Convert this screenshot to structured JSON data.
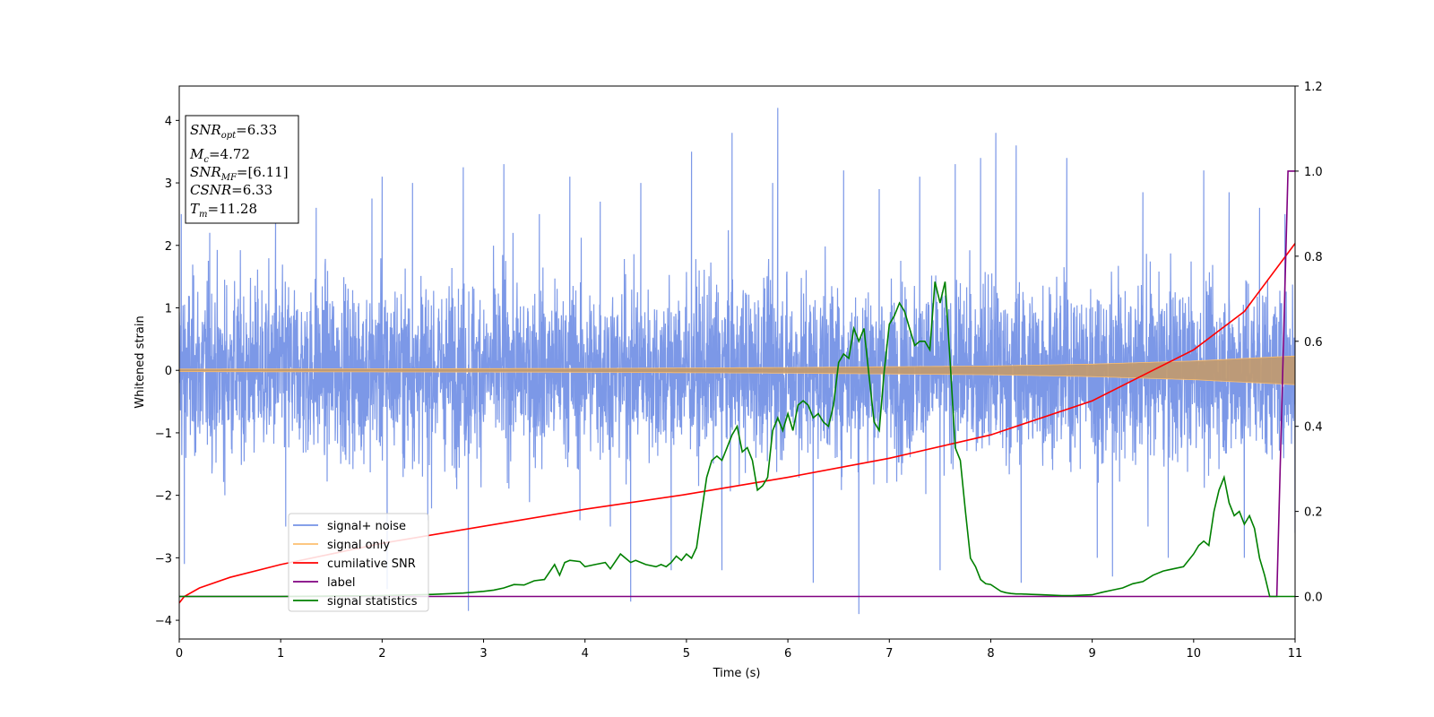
{
  "chart_data": {
    "type": "line",
    "xlabel": "Time (s)",
    "ylabel": "Whitened strain",
    "xlim": [
      0,
      11
    ],
    "ylim": [
      -4.3,
      4.55
    ],
    "ylim_right": [
      -0.1,
      1.2
    ],
    "x_ticks": [
      "0",
      "1",
      "2",
      "3",
      "4",
      "5",
      "6",
      "7",
      "8",
      "9",
      "10",
      "11"
    ],
    "y_ticks": [
      "4",
      "3",
      "2",
      "1",
      "0",
      "−1",
      "−2",
      "−3",
      "−4"
    ],
    "y_ticks_right": [
      "1.2",
      "1.0",
      "0.8",
      "0.6",
      "0.4",
      "0.2",
      "0.0"
    ],
    "grid": false,
    "legend_position": "lower-left",
    "info_box": {
      "snr_opt": {
        "main": "SNR",
        "sub": "opt",
        "value": "=6.33"
      },
      "mc": {
        "main": "M",
        "sub": "c",
        "value": "=4.72"
      },
      "snr_mf": {
        "main": "SNR",
        "sub": "MF",
        "value": "=[6.11]"
      },
      "csnr": {
        "main": "CSNR",
        "sub": "",
        "value": "=6.33"
      },
      "tm": {
        "main": "T",
        "sub": "m",
        "value": "=11.28"
      }
    },
    "series": [
      {
        "name": "signal+ noise",
        "color": "#7592e6",
        "axis": "left",
        "kind": "noise",
        "base_amplitude": 1.55,
        "peaks": [
          [
            0.02,
            2.5
          ],
          [
            0.05,
            -3.1
          ],
          [
            0.3,
            2.2
          ],
          [
            0.45,
            -2.0
          ],
          [
            0.95,
            2.5
          ],
          [
            1.05,
            -2.5
          ],
          [
            1.35,
            2.6
          ],
          [
            1.9,
            2.75
          ],
          [
            2.0,
            3.1
          ],
          [
            2.05,
            -3.5
          ],
          [
            2.3,
            3.0
          ],
          [
            2.45,
            -2.4
          ],
          [
            2.8,
            3.25
          ],
          [
            2.85,
            -3.85
          ],
          [
            3.2,
            3.3
          ],
          [
            3.55,
            2.5
          ],
          [
            3.85,
            3.1
          ],
          [
            3.95,
            -2.4
          ],
          [
            4.15,
            2.7
          ],
          [
            4.25,
            -2.5
          ],
          [
            4.45,
            -3.7
          ],
          [
            4.55,
            3.0
          ],
          [
            4.85,
            -3.2
          ],
          [
            5.05,
            3.5
          ],
          [
            5.35,
            -3.2
          ],
          [
            5.45,
            3.8
          ],
          [
            5.85,
            3.0
          ],
          [
            5.9,
            4.2
          ],
          [
            6.25,
            -3.4
          ],
          [
            6.55,
            3.2
          ],
          [
            6.7,
            -3.9
          ],
          [
            6.9,
            2.9
          ],
          [
            7.3,
            3.1
          ],
          [
            7.5,
            -3.2
          ],
          [
            7.65,
            3.3
          ],
          [
            7.9,
            3.4
          ],
          [
            8.05,
            3.8
          ],
          [
            8.25,
            3.6
          ],
          [
            8.3,
            -3.4
          ],
          [
            8.75,
            3.4
          ],
          [
            9.05,
            -3.0
          ],
          [
            9.2,
            -3.3
          ],
          [
            9.5,
            2.85
          ],
          [
            9.55,
            -2.5
          ],
          [
            9.75,
            -3.0
          ],
          [
            10.1,
            3.2
          ],
          [
            10.35,
            2.85
          ],
          [
            10.5,
            -3.0
          ],
          [
            10.65,
            2.6
          ],
          [
            10.9,
            2.5
          ],
          [
            11.0,
            -2.6
          ]
        ]
      },
      {
        "name": "signal only",
        "color": "#fdbf6f",
        "axis": "left",
        "kind": "envelope",
        "envelope": [
          [
            0,
            0.02
          ],
          [
            4,
            0.03
          ],
          [
            6,
            0.045
          ],
          [
            8,
            0.07
          ],
          [
            9,
            0.1
          ],
          [
            10,
            0.15
          ],
          [
            11,
            0.23
          ]
        ]
      },
      {
        "name": "cumilative SNR",
        "color": "#ff0000",
        "axis": "right",
        "kind": "line",
        "x": [
          0,
          0.05,
          0.2,
          0.5,
          1,
          2,
          3,
          4,
          5,
          6,
          7,
          8,
          9,
          10,
          10.5,
          11
        ],
        "y": [
          -0.015,
          0.0,
          0.02,
          0.045,
          0.075,
          0.125,
          0.165,
          0.205,
          0.24,
          0.28,
          0.325,
          0.38,
          0.46,
          0.58,
          0.67,
          0.83
        ]
      },
      {
        "name": "label",
        "color": "#800080",
        "axis": "right",
        "kind": "line",
        "x": [
          0,
          10.82,
          10.93,
          11
        ],
        "y": [
          0,
          0,
          1.0,
          1.0
        ]
      },
      {
        "name": "signal statistics",
        "color": "#008000",
        "axis": "right",
        "kind": "line",
        "x": [
          0,
          1,
          2,
          2.5,
          2.8,
          3.0,
          3.1,
          3.2,
          3.3,
          3.4,
          3.5,
          3.6,
          3.7,
          3.75,
          3.8,
          3.85,
          3.95,
          4.0,
          4.1,
          4.2,
          4.25,
          4.35,
          4.45,
          4.5,
          4.6,
          4.7,
          4.75,
          4.8,
          4.85,
          4.9,
          4.95,
          5.0,
          5.05,
          5.1,
          5.15,
          5.2,
          5.25,
          5.3,
          5.35,
          5.4,
          5.45,
          5.5,
          5.55,
          5.6,
          5.65,
          5.7,
          5.75,
          5.8,
          5.85,
          5.9,
          5.95,
          6.0,
          6.05,
          6.1,
          6.15,
          6.2,
          6.25,
          6.3,
          6.35,
          6.4,
          6.45,
          6.5,
          6.55,
          6.6,
          6.65,
          6.7,
          6.75,
          6.8,
          6.85,
          6.9,
          6.95,
          7.0,
          7.05,
          7.1,
          7.15,
          7.2,
          7.25,
          7.3,
          7.35,
          7.4,
          7.45,
          7.5,
          7.55,
          7.6,
          7.65,
          7.7,
          7.75,
          7.8,
          7.85,
          7.9,
          7.95,
          8.0,
          8.05,
          8.1,
          8.15,
          8.2,
          8.25,
          8.3,
          8.4,
          8.5,
          8.6,
          8.7,
          8.8,
          8.9,
          9.0,
          9.1,
          9.2,
          9.3,
          9.4,
          9.5,
          9.6,
          9.7,
          9.8,
          9.9,
          10.0,
          10.05,
          10.1,
          10.15,
          10.2,
          10.25,
          10.3,
          10.35,
          10.4,
          10.45,
          10.5,
          10.55,
          10.6,
          10.65,
          10.7,
          10.75,
          10.8,
          10.85,
          10.9,
          10.95,
          11.0
        ],
        "y": [
          0.0,
          0.0,
          0.002,
          0.005,
          0.008,
          0.012,
          0.015,
          0.02,
          0.028,
          0.027,
          0.037,
          0.04,
          0.075,
          0.05,
          0.08,
          0.085,
          0.082,
          0.07,
          0.075,
          0.08,
          0.065,
          0.1,
          0.08,
          0.085,
          0.075,
          0.07,
          0.075,
          0.07,
          0.08,
          0.095,
          0.085,
          0.1,
          0.09,
          0.115,
          0.2,
          0.28,
          0.32,
          0.33,
          0.32,
          0.35,
          0.38,
          0.4,
          0.34,
          0.35,
          0.32,
          0.25,
          0.26,
          0.28,
          0.39,
          0.42,
          0.39,
          0.43,
          0.39,
          0.45,
          0.46,
          0.45,
          0.42,
          0.43,
          0.41,
          0.4,
          0.45,
          0.55,
          0.57,
          0.56,
          0.63,
          0.6,
          0.63,
          0.52,
          0.41,
          0.39,
          0.53,
          0.64,
          0.66,
          0.69,
          0.67,
          0.63,
          0.59,
          0.6,
          0.6,
          0.58,
          0.74,
          0.69,
          0.74,
          0.55,
          0.35,
          0.32,
          0.2,
          0.09,
          0.07,
          0.04,
          0.03,
          0.028,
          0.02,
          0.012,
          0.009,
          0.007,
          0.006,
          0.006,
          0.005,
          0.004,
          0.003,
          0.002,
          0.002,
          0.003,
          0.004,
          0.01,
          0.015,
          0.02,
          0.03,
          0.035,
          0.05,
          0.06,
          0.065,
          0.07,
          0.1,
          0.12,
          0.13,
          0.12,
          0.2,
          0.25,
          0.28,
          0.22,
          0.19,
          0.2,
          0.17,
          0.19,
          0.16,
          0.09,
          0.05,
          0.0,
          0.0,
          0.0,
          0.0,
          0.0,
          0.0
        ]
      }
    ]
  }
}
